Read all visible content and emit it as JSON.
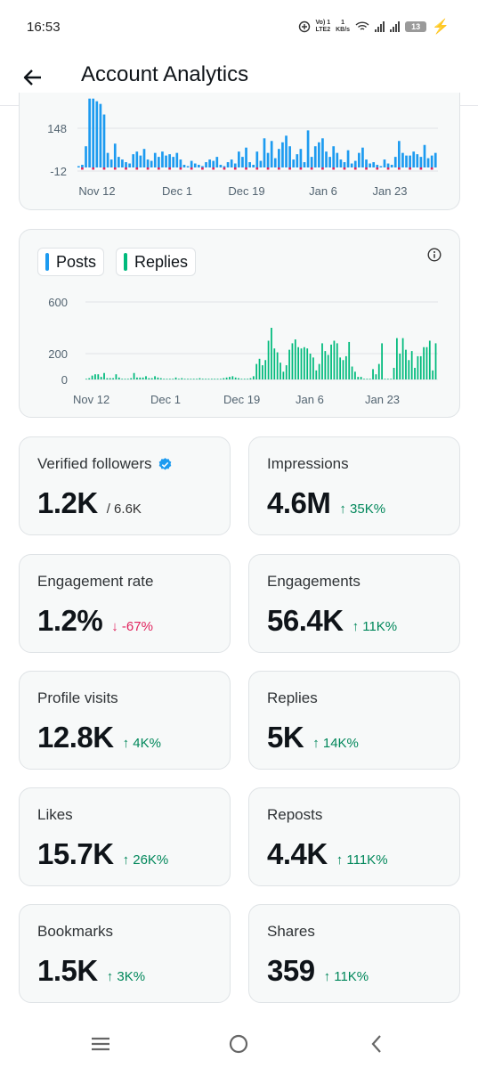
{
  "status_bar": {
    "time": "16:53",
    "volte": "Vo) 1\nLTE2",
    "speed": "1\nKB/s",
    "battery": "13"
  },
  "header": {
    "title": "Account Analytics"
  },
  "chart_top": {
    "type": "bar",
    "y_ticks": [
      "148",
      "-12"
    ],
    "x_ticks": [
      "Nov 12",
      "Dec 1",
      "Dec 19",
      "Jan 6",
      "Jan 23"
    ],
    "series_colors": {
      "posts": "#1d9bf0",
      "negative": "#e0245e"
    },
    "chart_data": {
      "type": "bar",
      "ylim": [
        -12,
        260
      ],
      "values": [
        5,
        10,
        80,
        260,
        260,
        250,
        240,
        200,
        55,
        30,
        90,
        40,
        30,
        20,
        15,
        50,
        60,
        45,
        70,
        30,
        25,
        55,
        40,
        60,
        45,
        50,
        40,
        55,
        30,
        10,
        5,
        25,
        15,
        10,
        5,
        20,
        30,
        25,
        40,
        10,
        5,
        20,
        30,
        15,
        60,
        40,
        75,
        20,
        10,
        60,
        25,
        110,
        55,
        100,
        35,
        70,
        95,
        120,
        80,
        30,
        50,
        70,
        20,
        140,
        40,
        80,
        95,
        110,
        60,
        40,
        80,
        55,
        30,
        20,
        65,
        15,
        25,
        55,
        75,
        30,
        15,
        20,
        10,
        5,
        30,
        15,
        10,
        40,
        100,
        55,
        45,
        45,
        60,
        50,
        40,
        85,
        35,
        45,
        55
      ]
    }
  },
  "chart_replies": {
    "legend": [
      {
        "label": "Posts",
        "color": "#1d9bf0"
      },
      {
        "label": "Replies",
        "color": "#00ba7c"
      }
    ],
    "y_ticks": [
      "600",
      "200",
      "0"
    ],
    "x_ticks": [
      "Nov 12",
      "Dec 1",
      "Dec 19",
      "Jan 6",
      "Jan 23"
    ],
    "chart_data": {
      "type": "bar",
      "ylim": [
        0,
        600
      ],
      "values": [
        5,
        10,
        30,
        40,
        40,
        20,
        50,
        10,
        10,
        10,
        40,
        15,
        5,
        5,
        5,
        10,
        50,
        15,
        15,
        15,
        25,
        10,
        10,
        25,
        15,
        10,
        5,
        5,
        5,
        5,
        15,
        5,
        10,
        5,
        5,
        5,
        5,
        5,
        10,
        5,
        5,
        5,
        5,
        5,
        5,
        5,
        10,
        15,
        20,
        25,
        15,
        10,
        5,
        5,
        5,
        10,
        25,
        120,
        160,
        110,
        150,
        300,
        400,
        240,
        210,
        130,
        60,
        110,
        230,
        280,
        310,
        250,
        240,
        250,
        240,
        200,
        170,
        70,
        120,
        280,
        220,
        190,
        270,
        300,
        280,
        170,
        150,
        180,
        290,
        100,
        60,
        20,
        20,
        5,
        5,
        5,
        80,
        40,
        120,
        280,
        5,
        5,
        5,
        90,
        320,
        200,
        320,
        230,
        150,
        220,
        90,
        180,
        180,
        250,
        250,
        300,
        70,
        280
      ]
    }
  },
  "stats": [
    {
      "label": "Verified followers",
      "value": "1.2K",
      "sub": "/ 6.6K",
      "change": "",
      "dir": "",
      "verified": true
    },
    {
      "label": "Impressions",
      "value": "4.6M",
      "sub": "",
      "change": "↑ 35K%",
      "dir": "up"
    },
    {
      "label": "Engagement rate",
      "value": "1.2%",
      "sub": "",
      "change": "↓ -67%",
      "dir": "down"
    },
    {
      "label": "Engagements",
      "value": "56.4K",
      "sub": "",
      "change": "↑ 11K%",
      "dir": "up"
    },
    {
      "label": "Profile visits",
      "value": "12.8K",
      "sub": "",
      "change": "↑ 4K%",
      "dir": "up"
    },
    {
      "label": "Replies",
      "value": "5K",
      "sub": "",
      "change": "↑ 14K%",
      "dir": "up"
    },
    {
      "label": "Likes",
      "value": "15.7K",
      "sub": "",
      "change": "↑ 26K%",
      "dir": "up"
    },
    {
      "label": "Reposts",
      "value": "4.4K",
      "sub": "",
      "change": "↑ 111K%",
      "dir": "up"
    },
    {
      "label": "Bookmarks",
      "value": "1.5K",
      "sub": "",
      "change": "↑ 3K%",
      "dir": "up"
    },
    {
      "label": "Shares",
      "value": "359",
      "sub": "",
      "change": "↑ 11K%",
      "dir": "up"
    }
  ],
  "nav": {
    "icons": [
      "menu-icon",
      "home-circle-icon",
      "back-chevron-icon"
    ]
  }
}
